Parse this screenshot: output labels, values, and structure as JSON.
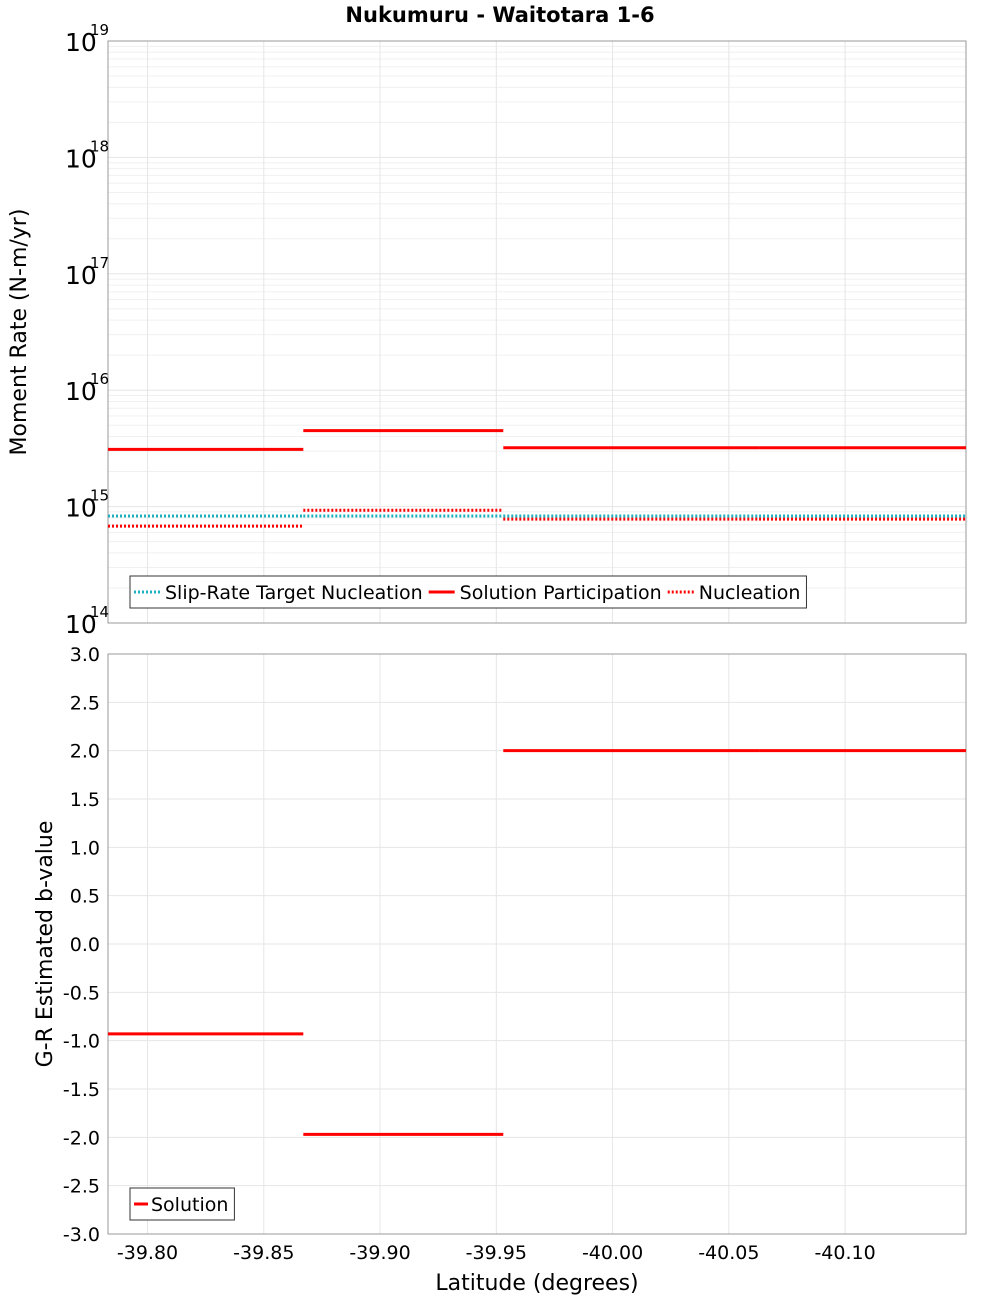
{
  "chart_data": [
    {
      "type": "line",
      "title": "Nukumuru - Waitotara 1-6",
      "xlabel": "Latitude (degrees)",
      "ylabel": "Moment Rate (N-m/yr)",
      "yscale": "log",
      "xlim": [
        -39.783,
        -40.152
      ],
      "ylim": [
        100000000000000.0,
        1e+19
      ],
      "grid": true,
      "y_tick_exponents": [
        "14",
        "15",
        "16",
        "17",
        "18",
        "19"
      ],
      "y_tick_base": "10",
      "legend_placement": "bottom-left",
      "series": [
        {
          "name": "Slip-Rate Target Nucleation",
          "style": "dotted",
          "color": "#1fb0c0",
          "segments": [
            {
              "x": [
                -39.783,
                -39.867
              ],
              "y": 830000000000000.0
            },
            {
              "x": [
                -39.867,
                -39.953
              ],
              "y": 830000000000000.0
            },
            {
              "x": [
                -39.953,
                -40.063
              ],
              "y": 830000000000000.0
            },
            {
              "x": [
                -40.063,
                -40.152
              ],
              "y": 830000000000000.0
            }
          ]
        },
        {
          "name": "Solution Participation",
          "style": "solid",
          "color": "#ff0000",
          "segments": [
            {
              "x": [
                -39.783,
                -39.867
              ],
              "y": 3100000000000000.0
            },
            {
              "x": [
                -39.867,
                -39.953
              ],
              "y": 4500000000000000.0
            },
            {
              "x": [
                -39.953,
                -40.063
              ],
              "y": 3200000000000000.0
            },
            {
              "x": [
                -40.063,
                -40.152
              ],
              "y": 3200000000000000.0
            }
          ]
        },
        {
          "name": "Nucleation",
          "style": "dotted",
          "color": "#ff0000",
          "segments": [
            {
              "x": [
                -39.783,
                -39.867
              ],
              "y": 680000000000000.0
            },
            {
              "x": [
                -39.867,
                -39.953
              ],
              "y": 930000000000000.0
            },
            {
              "x": [
                -39.953,
                -40.063
              ],
              "y": 780000000000000.0
            },
            {
              "x": [
                -40.063,
                -40.152
              ],
              "y": 780000000000000.0
            }
          ]
        }
      ]
    },
    {
      "type": "line",
      "xlabel": "Latitude (degrees)",
      "ylabel": "G-R Estimated b-value",
      "xlim": [
        -39.783,
        -40.152
      ],
      "ylim": [
        -3.0,
        3.0
      ],
      "grid": true,
      "x_ticks": [
        -39.8,
        -39.85,
        -39.9,
        -39.95,
        -40.0,
        -40.05,
        -40.1
      ],
      "x_tick_labels": [
        "-39.80",
        "-39.85",
        "-39.90",
        "-39.95",
        "-40.00",
        "-40.05",
        "-40.10"
      ],
      "y_ticks": [
        3.0,
        2.5,
        2.0,
        1.5,
        1.0,
        0.5,
        0.0,
        -0.5,
        -1.0,
        -1.5,
        -2.0,
        -2.5,
        -3.0
      ],
      "y_tick_labels": [
        "3.0",
        "2.5",
        "2.0",
        "1.5",
        "1.0",
        "0.5",
        "0.0",
        "-0.5",
        "-1.0",
        "-1.5",
        "-2.0",
        "-2.5",
        "-3.0"
      ],
      "legend_placement": "bottom-left",
      "series": [
        {
          "name": "Solution",
          "style": "solid",
          "color": "#ff0000",
          "segments": [
            {
              "x": [
                -39.783,
                -39.867
              ],
              "y": -0.93
            },
            {
              "x": [
                -39.867,
                -39.953
              ],
              "y": -1.97
            },
            {
              "x": [
                -39.953,
                -40.063
              ],
              "y": 2.0
            },
            {
              "x": [
                -40.063,
                -40.152
              ],
              "y": 2.0
            }
          ]
        }
      ]
    }
  ]
}
